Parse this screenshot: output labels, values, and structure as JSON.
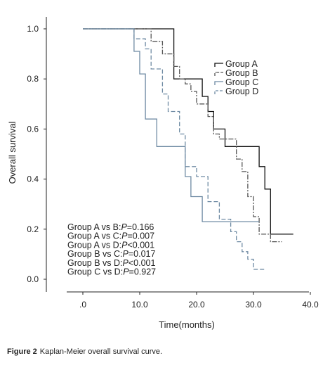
{
  "chart_data": {
    "type": "line",
    "step": true,
    "xlabel": "Time(months)",
    "ylabel": "Overall survival",
    "xlim": [
      0,
      40
    ],
    "ylim": [
      0,
      1.0
    ],
    "xticks": [
      0,
      10,
      20,
      30,
      40
    ],
    "xtick_labels": [
      ".0",
      "10.0",
      "20.0",
      "30.0",
      "40.0"
    ],
    "yticks": [
      0,
      0.2,
      0.4,
      0.6,
      0.8,
      1.0
    ],
    "ytick_labels": [
      "0.0",
      "0.2",
      "0.4",
      "0.6",
      "0.8",
      "1.0"
    ],
    "grid": false,
    "legend_position": "right, upper middle",
    "series": [
      {
        "name": "Group A",
        "color": "#111111",
        "dash": "",
        "x": [
          0,
          16,
          16,
          18,
          18,
          21,
          21,
          22,
          22,
          23,
          23,
          25,
          25,
          27,
          27,
          31,
          31,
          32,
          32,
          33,
          33,
          37
        ],
        "y": [
          1.0,
          1.0,
          0.8,
          0.8,
          0.8,
          0.8,
          0.73,
          0.73,
          0.67,
          0.67,
          0.6,
          0.6,
          0.53,
          0.53,
          0.53,
          0.53,
          0.45,
          0.45,
          0.36,
          0.36,
          0.18,
          0.18
        ]
      },
      {
        "name": "Group B",
        "color": "#555555",
        "dash": "7,2,2,2",
        "x": [
          0,
          12,
          12,
          14,
          14,
          16,
          16,
          17,
          17,
          18,
          18,
          19,
          19,
          20,
          20,
          22,
          22,
          23,
          23,
          24,
          24,
          27,
          27,
          28,
          28,
          29,
          29,
          30,
          30,
          31,
          31,
          33,
          33,
          35
        ],
        "y": [
          1.0,
          1.0,
          0.95,
          0.95,
          0.9,
          0.9,
          0.85,
          0.85,
          0.8,
          0.8,
          0.78,
          0.78,
          0.75,
          0.75,
          0.7,
          0.7,
          0.65,
          0.65,
          0.58,
          0.58,
          0.56,
          0.56,
          0.48,
          0.48,
          0.43,
          0.43,
          0.33,
          0.33,
          0.25,
          0.25,
          0.18,
          0.18,
          0.15,
          0.15
        ]
      },
      {
        "name": "Group C",
        "color": "#6e8aa3",
        "dash": "",
        "x": [
          0,
          9,
          9,
          10,
          10,
          11,
          11,
          13,
          13,
          18,
          18,
          19,
          19,
          21,
          21,
          31
        ],
        "y": [
          1.0,
          1.0,
          0.91,
          0.91,
          0.82,
          0.82,
          0.64,
          0.64,
          0.53,
          0.53,
          0.41,
          0.41,
          0.33,
          0.33,
          0.23,
          0.23
        ]
      },
      {
        "name": "Group D",
        "color": "#6e8aa3",
        "dash": "6,3",
        "x": [
          0,
          9,
          9,
          11,
          11,
          12,
          12,
          14,
          14,
          15,
          15,
          17,
          17,
          18,
          18,
          20,
          20,
          22,
          22,
          24,
          24,
          26,
          26,
          27,
          27,
          28,
          28,
          29,
          29,
          30,
          30,
          31,
          31,
          32
        ],
        "y": [
          1.0,
          1.0,
          0.96,
          0.96,
          0.92,
          0.92,
          0.84,
          0.84,
          0.74,
          0.74,
          0.67,
          0.67,
          0.58,
          0.58,
          0.45,
          0.45,
          0.41,
          0.41,
          0.31,
          0.31,
          0.24,
          0.24,
          0.19,
          0.19,
          0.15,
          0.15,
          0.11,
          0.11,
          0.08,
          0.08,
          0.04,
          0.04,
          0.04,
          0.04
        ]
      }
    ],
    "annotations": [
      {
        "prefix": "Group A vs B:",
        "p": "P",
        "rest": "=0.166"
      },
      {
        "prefix": "Group A vs C:",
        "p": "P",
        "rest": "=0.007"
      },
      {
        "prefix": "Group A vs D:",
        "p": "P",
        "rest": "<0.001"
      },
      {
        "prefix": "Group B vs C:",
        "p": "P",
        "rest": "=0.017"
      },
      {
        "prefix": "Group B vs D:",
        "p": "P",
        "rest": "<0.001"
      },
      {
        "prefix": "Group C vs D:",
        "p": "P",
        "rest": "=0.927"
      }
    ]
  },
  "caption": {
    "label": "Figure 2",
    "text": "Kaplan-Meier overall survival curve."
  }
}
